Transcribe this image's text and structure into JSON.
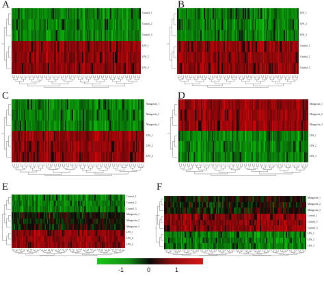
{
  "figure": {
    "panels": [
      {
        "id": "A",
        "letter": "A",
        "rows": [
          "Control_1",
          "Control_2",
          "Control_3",
          "LPS_1",
          "LPS_2",
          "LPS_3"
        ],
        "pattern": [
          "G",
          "G",
          "G",
          "R",
          "R",
          "R"
        ],
        "seed": 11
      },
      {
        "id": "B",
        "letter": "B",
        "rows": [
          "LPS_1",
          "LPS_2",
          "LPS_3",
          "Control_1",
          "Control_2",
          "Control_3"
        ],
        "pattern": [
          "G",
          "G",
          "G",
          "R",
          "R",
          "R"
        ],
        "seed": 23
      },
      {
        "id": "C",
        "letter": "C",
        "rows": [
          "Mangostin_1",
          "Mangostin_2",
          "Mangostin_3",
          "LPS_1",
          "LPS_2",
          "LPS_3"
        ],
        "pattern": [
          "G",
          "G",
          "G",
          "R",
          "R",
          "R"
        ],
        "seed": 37
      },
      {
        "id": "D",
        "letter": "D",
        "rows": [
          "Mangostin_1",
          "Mangostin_2",
          "Mangostin_3",
          "LPS_1",
          "LPS_2",
          "LPS_3"
        ],
        "pattern": [
          "R",
          "R",
          "R",
          "G",
          "G",
          "G"
        ],
        "seed": 41
      },
      {
        "id": "E",
        "letter": "E",
        "rows": [
          "Control_1",
          "Control_2",
          "Control_3",
          "Mangostin_1",
          "Mangostin_2",
          "Mangostin_3",
          "LPS_1",
          "LPS_2",
          "LPS_3"
        ],
        "pattern": [
          "G",
          "G",
          "G",
          "K",
          "K",
          "K",
          "R",
          "R",
          "R"
        ],
        "seed": 53
      },
      {
        "id": "F",
        "letter": "F",
        "rows": [
          "Mangostin_1",
          "Mangostin_2",
          "Mangostin_3",
          "Control_1",
          "Control_2",
          "Control_3",
          "LPS_1",
          "LPS_2",
          "LPS_3"
        ],
        "pattern": [
          "K",
          "K",
          "K",
          "R",
          "R",
          "R",
          "G",
          "G",
          "G"
        ],
        "seed": 67
      }
    ],
    "colors": {
      "green": "#18c618",
      "black": "#0a0a0a",
      "red": "#d61717"
    },
    "legend": {
      "ticks": [
        "-1",
        "0",
        "1"
      ],
      "min": -1,
      "max": 1
    }
  }
}
